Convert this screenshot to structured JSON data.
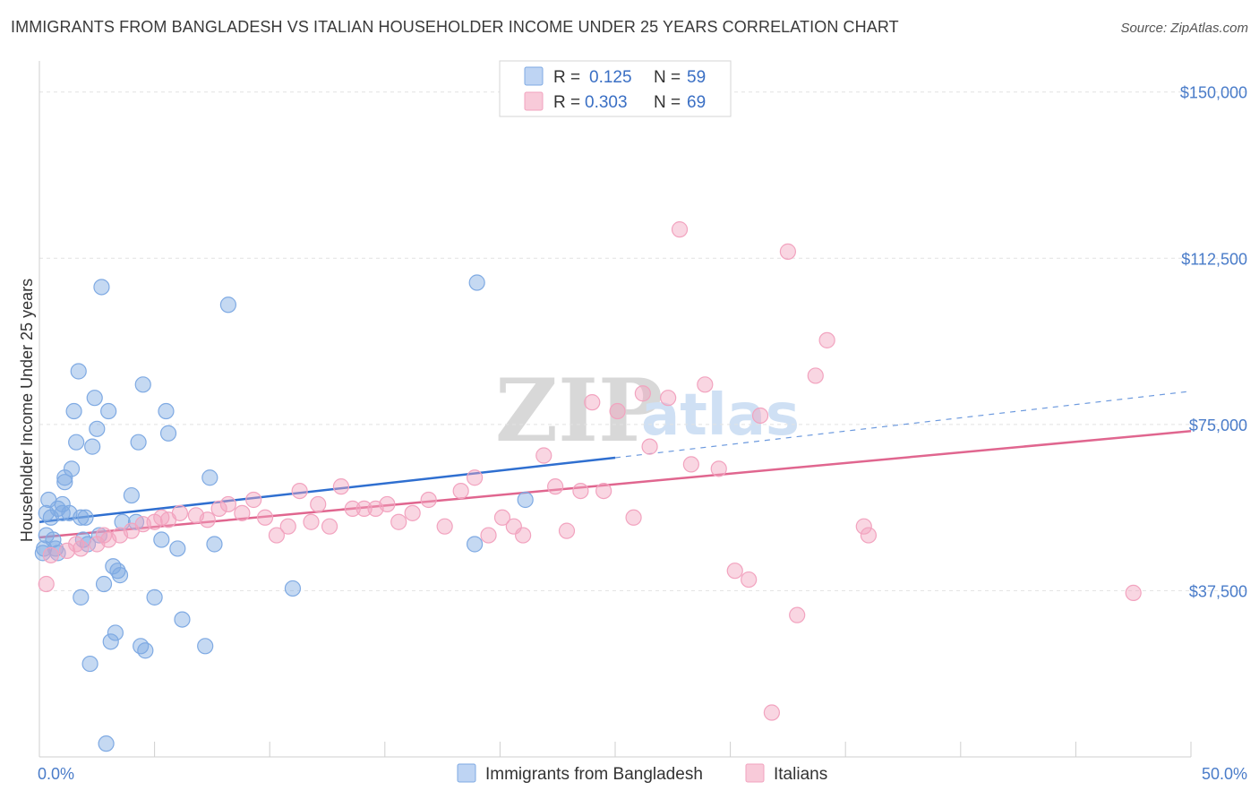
{
  "title": "IMMIGRANTS FROM BANGLADESH VS ITALIAN HOUSEHOLDER INCOME UNDER 25 YEARS CORRELATION CHART",
  "source": "Source: ZipAtlas.com",
  "watermark": {
    "zip": "ZIP",
    "atlas": "atlas"
  },
  "legend": {
    "r_label": "R =",
    "n_label": "N =",
    "rows": [
      {
        "r": "0.125",
        "n": "59",
        "color": "#a8c6ef"
      },
      {
        "r": "0.303",
        "n": "69",
        "color": "#f6b8cc"
      }
    ]
  },
  "bottom_legend": [
    {
      "label": "Immigrants from Bangladesh",
      "color": "#a8c6ef"
    },
    {
      "label": "Italians",
      "color": "#f6b8cc"
    }
  ],
  "chart_data": {
    "type": "scatter",
    "ylabel": "Householder Income Under 25 years",
    "xlim": [
      0,
      50
    ],
    "ylim": [
      0,
      155000
    ],
    "x_tick_labels": [
      "0.0%",
      "50.0%"
    ],
    "y_ticks": [
      37500,
      75000,
      112500,
      150000
    ],
    "y_tick_labels": [
      "$37,500",
      "$75,000",
      "$112,500",
      "$150,000"
    ],
    "grid": true,
    "series": [
      {
        "name": "Immigrants from Bangladesh",
        "color": "#7faae3",
        "line_color": "#2f6fd0",
        "trend": {
          "x0": 0,
          "y0": 53000,
          "x1": 25,
          "y1": 67500,
          "dash_x1": 50,
          "dash_y1": 82500
        },
        "points": [
          [
            0.2,
            47000
          ],
          [
            0.3,
            50000
          ],
          [
            0.3,
            55000
          ],
          [
            0.4,
            58000
          ],
          [
            0.5,
            54000
          ],
          [
            0.6,
            49000
          ],
          [
            0.7,
            47000
          ],
          [
            0.8,
            46000
          ],
          [
            0.8,
            56000
          ],
          [
            1.0,
            55000
          ],
          [
            1.0,
            57000
          ],
          [
            1.1,
            62000
          ],
          [
            1.1,
            63000
          ],
          [
            1.3,
            55000
          ],
          [
            1.4,
            65000
          ],
          [
            1.5,
            78000
          ],
          [
            1.6,
            71000
          ],
          [
            1.7,
            87000
          ],
          [
            1.8,
            54000
          ],
          [
            1.8,
            36000
          ],
          [
            1.9,
            49000
          ],
          [
            2.0,
            54000
          ],
          [
            2.1,
            48000
          ],
          [
            2.2,
            21000
          ],
          [
            2.3,
            70000
          ],
          [
            2.4,
            81000
          ],
          [
            2.5,
            74000
          ],
          [
            2.6,
            50000
          ],
          [
            2.7,
            106000
          ],
          [
            2.8,
            39000
          ],
          [
            2.9,
            3000
          ],
          [
            3.0,
            78000
          ],
          [
            3.1,
            26000
          ],
          [
            3.2,
            43000
          ],
          [
            3.3,
            28000
          ],
          [
            3.4,
            42000
          ],
          [
            3.5,
            41000
          ],
          [
            3.6,
            53000
          ],
          [
            4.0,
            59000
          ],
          [
            4.2,
            53000
          ],
          [
            4.3,
            71000
          ],
          [
            4.4,
            25000
          ],
          [
            4.5,
            84000
          ],
          [
            4.6,
            24000
          ],
          [
            5.0,
            36000
          ],
          [
            5.3,
            49000
          ],
          [
            5.5,
            78000
          ],
          [
            5.6,
            73000
          ],
          [
            6.0,
            47000
          ],
          [
            6.2,
            31000
          ],
          [
            7.2,
            25000
          ],
          [
            7.4,
            63000
          ],
          [
            7.6,
            48000
          ],
          [
            8.2,
            102000
          ],
          [
            11.0,
            38000
          ],
          [
            18.9,
            48000
          ],
          [
            19.0,
            107000
          ],
          [
            21.1,
            58000
          ],
          [
            0.15,
            46000
          ]
        ]
      },
      {
        "name": "Italians",
        "color": "#f2a3bf",
        "line_color": "#e0668f",
        "trend": {
          "x0": 0,
          "y0": 49500,
          "x1": 50,
          "y1": 73500
        },
        "points": [
          [
            0.3,
            39000
          ],
          [
            0.5,
            45500
          ],
          [
            1.2,
            46500
          ],
          [
            1.8,
            47000
          ],
          [
            2.5,
            48000
          ],
          [
            3.0,
            49000
          ],
          [
            3.5,
            50000
          ],
          [
            4.0,
            51000
          ],
          [
            4.5,
            52500
          ],
          [
            5.0,
            53000
          ],
          [
            5.3,
            54000
          ],
          [
            5.6,
            53500
          ],
          [
            6.1,
            55000
          ],
          [
            6.8,
            54500
          ],
          [
            7.3,
            53500
          ],
          [
            7.8,
            56000
          ],
          [
            8.2,
            57000
          ],
          [
            8.8,
            55000
          ],
          [
            9.3,
            58000
          ],
          [
            9.8,
            54000
          ],
          [
            10.3,
            50000
          ],
          [
            10.8,
            52000
          ],
          [
            11.3,
            60000
          ],
          [
            11.8,
            53000
          ],
          [
            12.1,
            57000
          ],
          [
            12.6,
            52000
          ],
          [
            13.1,
            61000
          ],
          [
            13.6,
            56000
          ],
          [
            14.1,
            56000
          ],
          [
            14.6,
            56000
          ],
          [
            15.1,
            57000
          ],
          [
            15.6,
            53000
          ],
          [
            16.2,
            55000
          ],
          [
            16.9,
            58000
          ],
          [
            17.6,
            52000
          ],
          [
            18.3,
            60000
          ],
          [
            18.9,
            63000
          ],
          [
            19.5,
            50000
          ],
          [
            20.1,
            54000
          ],
          [
            20.6,
            52000
          ],
          [
            21.0,
            50000
          ],
          [
            21.9,
            68000
          ],
          [
            22.4,
            61000
          ],
          [
            22.9,
            51000
          ],
          [
            23.5,
            60000
          ],
          [
            24.0,
            80000
          ],
          [
            24.5,
            60000
          ],
          [
            25.1,
            78000
          ],
          [
            25.8,
            54000
          ],
          [
            26.2,
            82000
          ],
          [
            26.5,
            70000
          ],
          [
            27.3,
            81000
          ],
          [
            27.8,
            119000
          ],
          [
            28.3,
            66000
          ],
          [
            28.9,
            84000
          ],
          [
            29.5,
            65000
          ],
          [
            30.2,
            42000
          ],
          [
            30.8,
            40000
          ],
          [
            31.3,
            77000
          ],
          [
            31.8,
            10000
          ],
          [
            32.5,
            114000
          ],
          [
            32.9,
            32000
          ],
          [
            33.7,
            86000
          ],
          [
            34.2,
            94000
          ],
          [
            35.8,
            52000
          ],
          [
            36.0,
            50000
          ],
          [
            47.5,
            37000
          ],
          [
            1.6,
            48000
          ],
          [
            2.8,
            50000
          ]
        ]
      }
    ]
  }
}
